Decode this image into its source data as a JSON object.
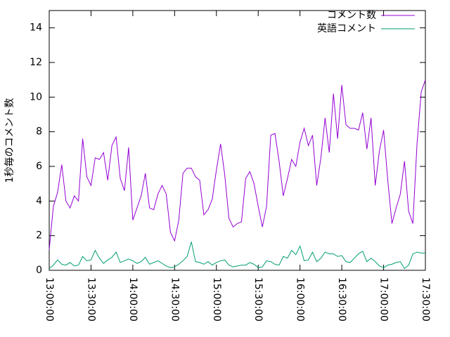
{
  "chart_data": {
    "type": "line",
    "ylabel": "1秒毎のコメント数",
    "x": [
      "13:00:00",
      "13:03:00",
      "13:06:00",
      "13:09:00",
      "13:12:00",
      "13:15:00",
      "13:18:00",
      "13:21:00",
      "13:24:00",
      "13:27:00",
      "13:30:00",
      "13:33:00",
      "13:36:00",
      "13:39:00",
      "13:42:00",
      "13:45:00",
      "13:48:00",
      "13:51:00",
      "13:54:00",
      "13:57:00",
      "14:00:00",
      "14:03:00",
      "14:06:00",
      "14:09:00",
      "14:12:00",
      "14:15:00",
      "14:18:00",
      "14:21:00",
      "14:24:00",
      "14:27:00",
      "14:30:00",
      "14:33:00",
      "14:36:00",
      "14:39:00",
      "14:42:00",
      "14:45:00",
      "14:48:00",
      "14:51:00",
      "14:54:00",
      "14:57:00",
      "15:00:00",
      "15:03:00",
      "15:06:00",
      "15:09:00",
      "15:12:00",
      "15:15:00",
      "15:18:00",
      "15:21:00",
      "15:24:00",
      "15:27:00",
      "15:30:00",
      "15:33:00",
      "15:36:00",
      "15:39:00",
      "15:42:00",
      "15:45:00",
      "15:48:00",
      "15:51:00",
      "15:54:00",
      "15:57:00",
      "16:00:00",
      "16:03:00",
      "16:06:00",
      "16:09:00",
      "16:12:00",
      "16:15:00",
      "16:18:00",
      "16:21:00",
      "16:24:00",
      "16:27:00",
      "16:30:00",
      "16:33:00",
      "16:36:00",
      "16:39:00",
      "16:42:00",
      "16:45:00",
      "16:48:00",
      "16:51:00",
      "16:54:00",
      "16:57:00",
      "17:00:00",
      "17:03:00",
      "17:06:00",
      "17:09:00",
      "17:12:00",
      "17:15:00",
      "17:18:00",
      "17:21:00",
      "17:24:00",
      "17:27:00",
      "17:30:00"
    ],
    "series": [
      {
        "name": "コメント数",
        "color": "#9400d3",
        "values": [
          1.2,
          3.7,
          4.5,
          6.1,
          4.0,
          3.6,
          4.3,
          4.0,
          7.6,
          5.4,
          4.9,
          6.5,
          6.4,
          6.8,
          5.2,
          7.2,
          7.7,
          5.3,
          4.6,
          7.1,
          2.9,
          3.6,
          4.3,
          5.6,
          3.6,
          3.5,
          4.4,
          4.9,
          4.4,
          2.2,
          1.7,
          2.9,
          5.6,
          5.9,
          5.9,
          5.4,
          5.2,
          3.2,
          3.5,
          4.1,
          5.8,
          7.3,
          5.5,
          3.0,
          2.5,
          2.7,
          2.8,
          5.3,
          5.7,
          5.0,
          3.7,
          2.5,
          3.7,
          7.8,
          7.9,
          6.3,
          4.3,
          5.3,
          6.4,
          6.0,
          7.4,
          8.2,
          7.2,
          7.8,
          4.9,
          6.5,
          8.8,
          6.8,
          10.2,
          7.6,
          10.7,
          8.4,
          8.2,
          8.2,
          8.1,
          9.1,
          7.0,
          8.8,
          4.9,
          6.9,
          8.1,
          5.2,
          2.7,
          3.6,
          4.4,
          6.3,
          3.4,
          2.7,
          7.3,
          10.3,
          11.0
        ]
      },
      {
        "name": "英語コメント",
        "color": "#009e73",
        "values": [
          0.1,
          0.3,
          0.6,
          0.35,
          0.3,
          0.45,
          0.25,
          0.3,
          0.8,
          0.55,
          0.6,
          1.15,
          0.7,
          0.4,
          0.6,
          0.75,
          1.05,
          0.45,
          0.55,
          0.65,
          0.55,
          0.4,
          0.5,
          0.75,
          0.35,
          0.45,
          0.55,
          0.4,
          0.25,
          0.15,
          0.2,
          0.35,
          0.55,
          0.8,
          1.65,
          0.5,
          0.45,
          0.35,
          0.5,
          0.3,
          0.45,
          0.55,
          0.6,
          0.3,
          0.2,
          0.25,
          0.3,
          0.3,
          0.45,
          0.35,
          0.15,
          0.2,
          0.55,
          0.5,
          0.35,
          0.3,
          0.8,
          0.7,
          1.15,
          0.9,
          1.4,
          0.55,
          0.6,
          1.05,
          0.5,
          0.7,
          1.05,
          0.95,
          0.95,
          0.8,
          0.85,
          0.5,
          0.45,
          0.7,
          0.95,
          1.1,
          0.5,
          0.7,
          0.5,
          0.25,
          0.15,
          0.3,
          0.35,
          0.45,
          0.5,
          0.1,
          0.3,
          0.95,
          1.05,
          1.0,
          1.0
        ]
      }
    ],
    "xlim": [
      "13:00:00",
      "17:30:00"
    ],
    "xticks": [
      "13:00:00",
      "13:30:00",
      "14:00:00",
      "14:30:00",
      "15:00:00",
      "15:30:00",
      "16:00:00",
      "16:30:00",
      "17:00:00",
      "17:30:00"
    ],
    "ylim": [
      0,
      15
    ],
    "yticks": [
      0,
      2,
      4,
      6,
      8,
      10,
      12,
      14
    ],
    "legend": "top-right"
  }
}
